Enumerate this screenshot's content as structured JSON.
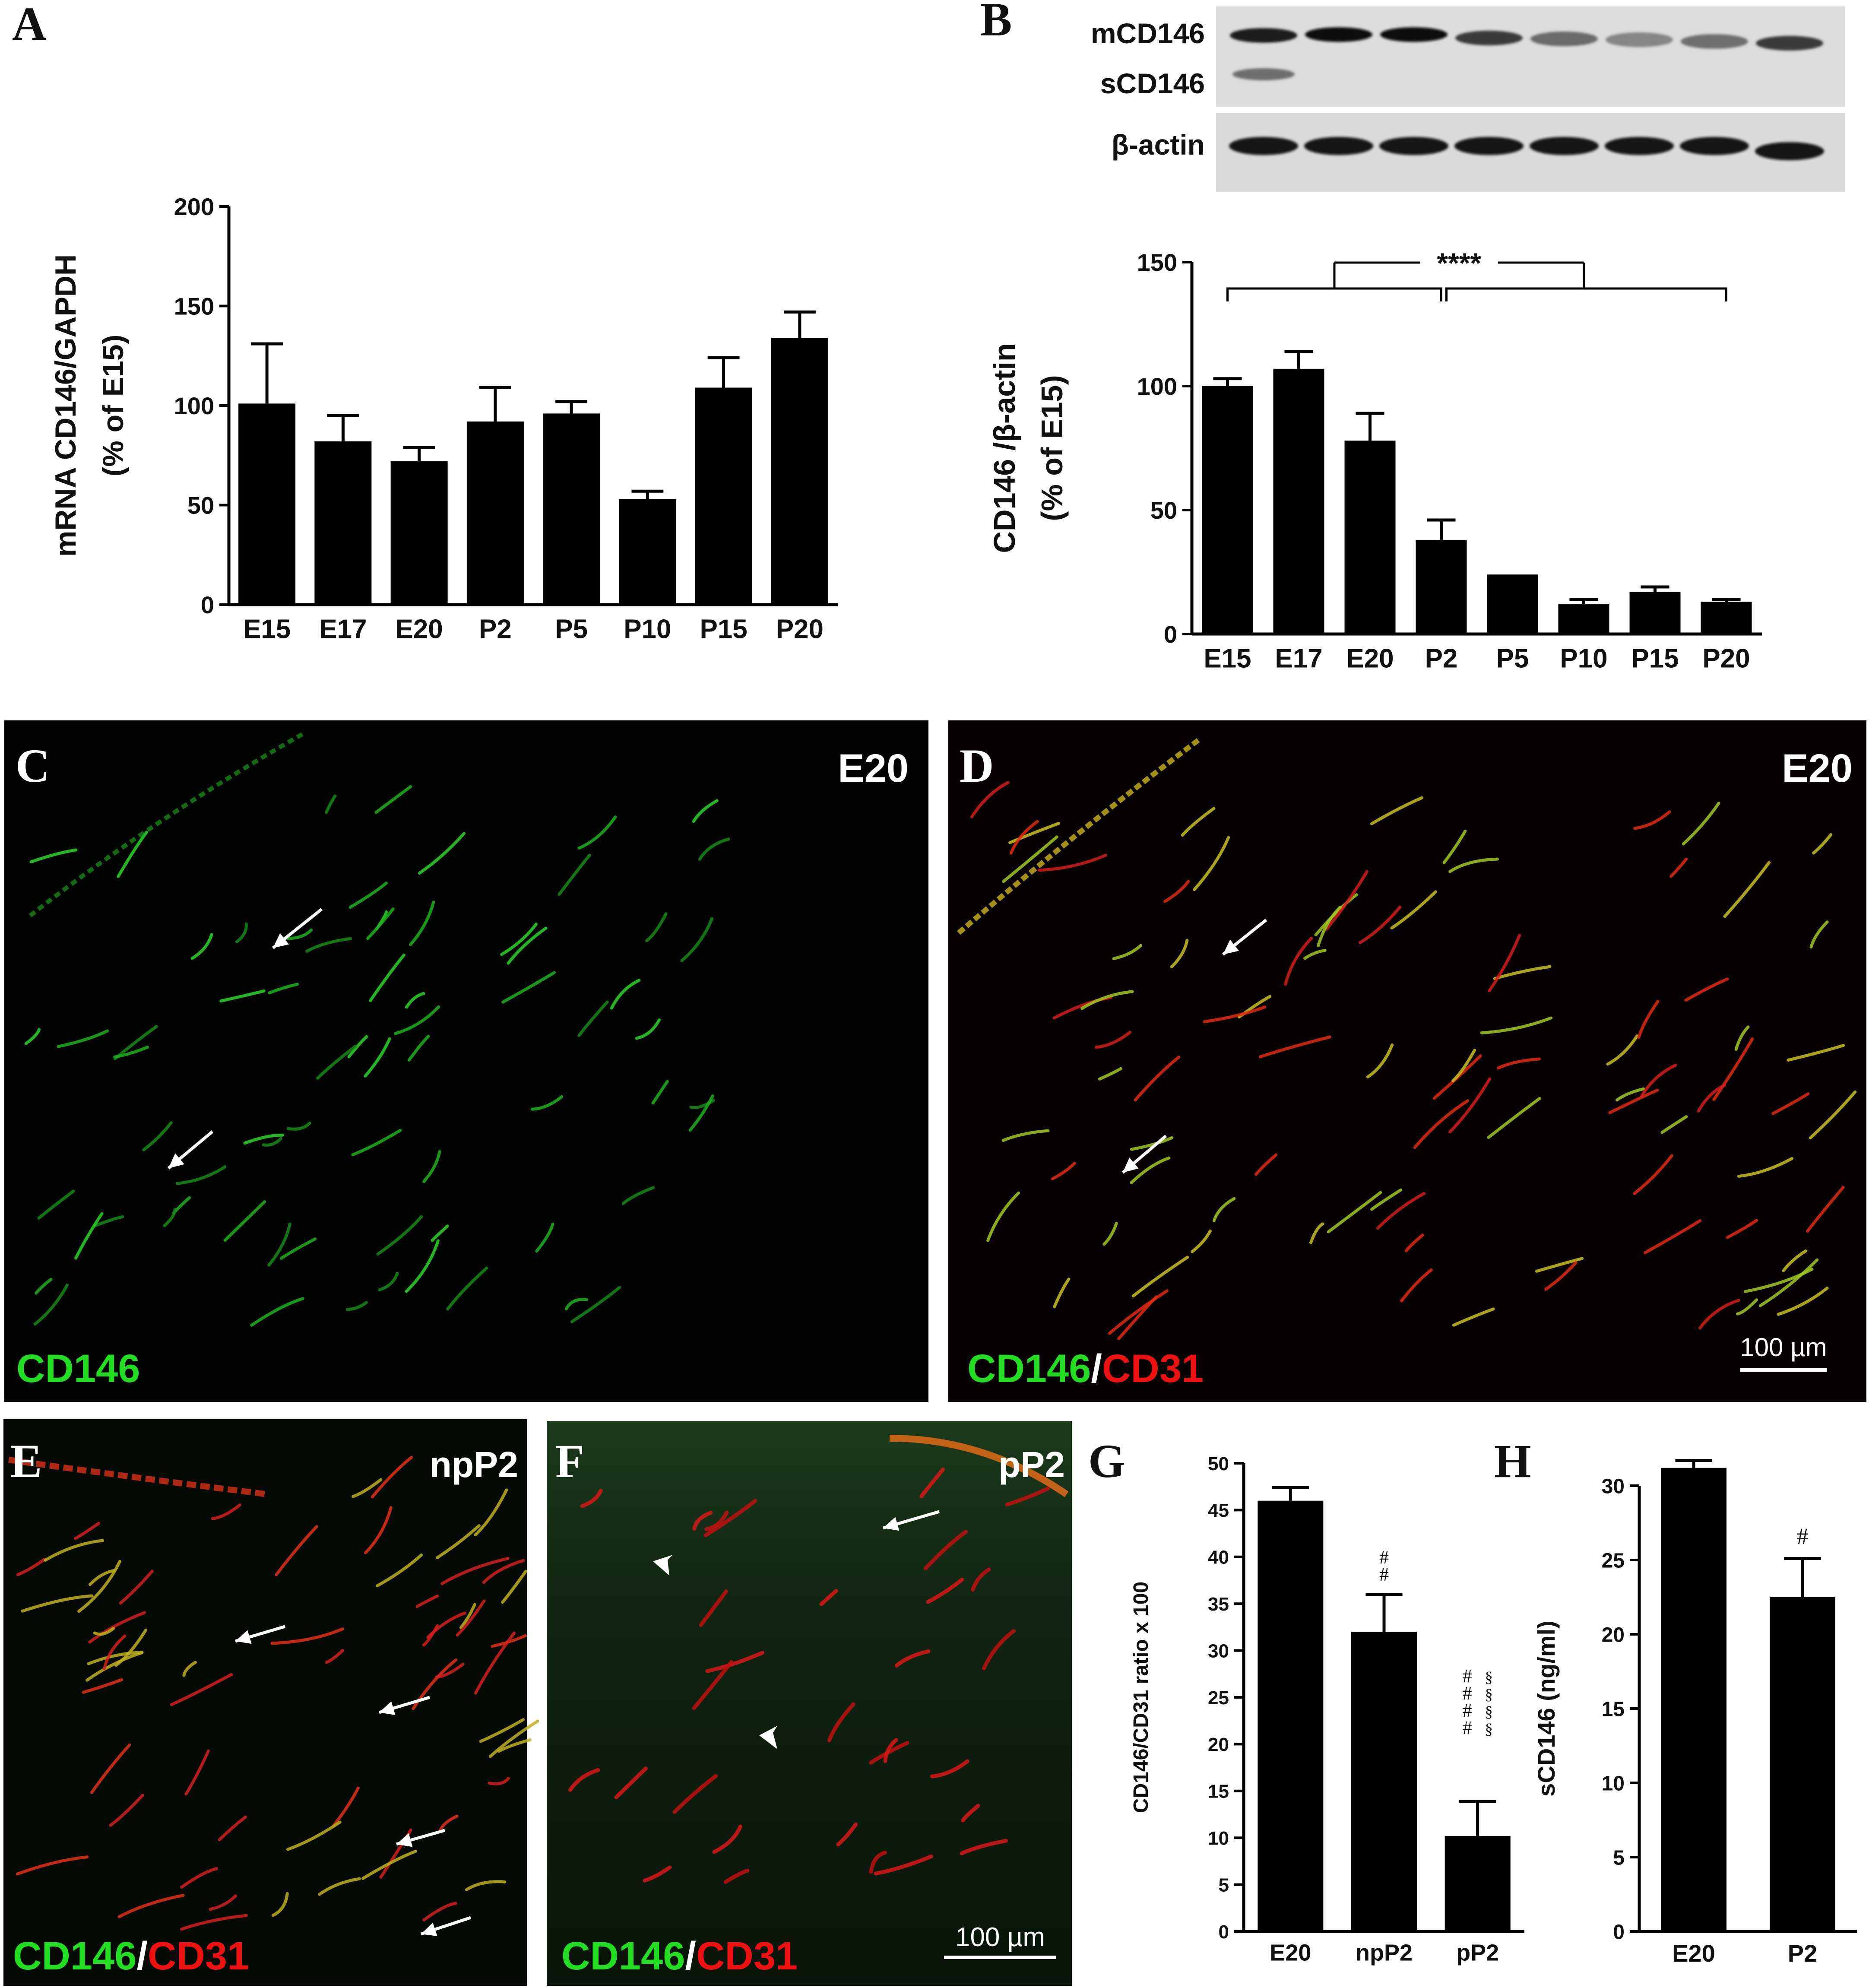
{
  "panel_letters": {
    "A": "A",
    "B": "B",
    "C": "C",
    "D": "D",
    "E": "E",
    "F": "F",
    "G": "G",
    "H": "H"
  },
  "blot": {
    "labels": {
      "m": "mCD146",
      "s": "sCD146",
      "actin": "β-actin"
    },
    "lanes": 8
  },
  "micrographs": {
    "C": {
      "stage": "E20",
      "stain": [
        {
          "text": "CD146",
          "color": "#22dd22"
        }
      ]
    },
    "D": {
      "stage": "E20",
      "stain": [
        {
          "text": "CD146",
          "color": "#22dd22"
        },
        {
          "text": "/",
          "color": "#ffffff"
        },
        {
          "text": "CD31",
          "color": "#ee1111"
        }
      ],
      "scale": "100 µm"
    },
    "E": {
      "stage": "npP2",
      "stain": [
        {
          "text": "CD146",
          "color": "#22dd22"
        },
        {
          "text": "/",
          "color": "#ffffff"
        },
        {
          "text": "CD31",
          "color": "#ee1111"
        }
      ]
    },
    "F": {
      "stage": "pP2",
      "stain": [
        {
          "text": "CD146",
          "color": "#22dd22"
        },
        {
          "text": "/",
          "color": "#ffffff"
        },
        {
          "text": "CD31",
          "color": "#ee1111"
        }
      ],
      "scale": "100 µm"
    }
  },
  "chart_data": [
    {
      "panel": "A",
      "type": "bar",
      "categories": [
        "E15",
        "E17",
        "E20",
        "P2",
        "P5",
        "P10",
        "P15",
        "P20"
      ],
      "values": [
        101,
        82,
        72,
        92,
        96,
        53,
        109,
        134
      ],
      "errors": [
        30,
        13,
        7,
        17,
        6,
        4,
        15,
        13
      ],
      "ylabel": [
        "mRNA CD146/GAPDH",
        "(% of E15)"
      ],
      "ylim": [
        0,
        200
      ],
      "yticks": [
        0,
        50,
        100,
        150,
        200
      ],
      "color": "#000000"
    },
    {
      "panel": "B",
      "type": "bar",
      "categories": [
        "E15",
        "E17",
        "E20",
        "P2",
        "P5",
        "P10",
        "P15",
        "P20"
      ],
      "values": [
        100,
        107,
        78,
        38,
        24,
        12,
        17,
        13
      ],
      "errors": [
        3,
        7,
        11,
        8,
        0,
        2,
        2,
        1
      ],
      "ylabel": [
        "CD146 /β-actin",
        "(% of E15)"
      ],
      "ylim": [
        0,
        150
      ],
      "yticks": [
        0,
        50,
        100,
        150
      ],
      "annotation": "****",
      "color": "#000000"
    },
    {
      "panel": "G",
      "type": "bar",
      "categories": [
        "E20",
        "npP2",
        "pP2"
      ],
      "values": [
        46,
        32,
        10.2
      ],
      "errors": [
        1.4,
        4,
        3.7
      ],
      "ylabel": "CD146/CD31 ratio x 100",
      "ylim": [
        0,
        50
      ],
      "yticks": [
        0,
        5,
        10,
        15,
        20,
        25,
        30,
        35,
        40,
        45,
        50
      ],
      "annotations": [
        [
          "#",
          "#"
        ],
        [
          "#",
          "#",
          "#",
          "#"
        ],
        [
          "§",
          "§",
          "§",
          "§"
        ]
      ],
      "color": "#000000"
    },
    {
      "panel": "H",
      "type": "bar",
      "categories": [
        "E20",
        "P2"
      ],
      "values": [
        31.2,
        22.5
      ],
      "errors": [
        0.5,
        2.6
      ],
      "ylabel": "sCD146 (ng/ml)",
      "ylim": [
        0,
        30
      ],
      "yticks": [
        0,
        5,
        10,
        15,
        20,
        25,
        30
      ],
      "annotations": [
        [
          "#"
        ]
      ],
      "color": "#000000"
    }
  ]
}
